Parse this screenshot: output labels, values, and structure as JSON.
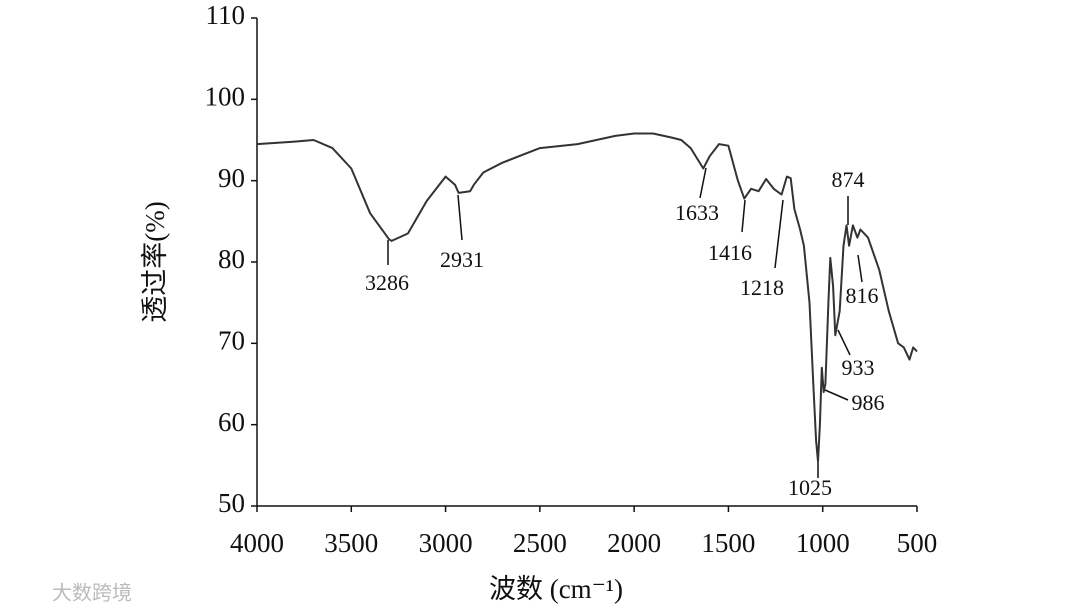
{
  "chart_data": {
    "type": "line",
    "xlabel": "波数 (cm⁻¹)",
    "ylabel": "透过率(%)",
    "x": [
      4000,
      3800,
      3700,
      3600,
      3500,
      3400,
      3300,
      3286,
      3200,
      3100,
      3000,
      2950,
      2931,
      2870,
      2850,
      2800,
      2700,
      2500,
      2300,
      2200,
      2100,
      2000,
      1900,
      1800,
      1750,
      1700,
      1633,
      1600,
      1550,
      1500,
      1450,
      1416,
      1380,
      1340,
      1300,
      1260,
      1230,
      1218,
      1190,
      1170,
      1150,
      1120,
      1100,
      1070,
      1050,
      1035,
      1025,
      1015,
      1005,
      995,
      986,
      970,
      960,
      945,
      933,
      910,
      890,
      874,
      860,
      840,
      816,
      800,
      760,
      700,
      650,
      600,
      570,
      540,
      520,
      500
    ],
    "values": [
      94.5,
      94.8,
      95.0,
      94.0,
      91.5,
      86.0,
      82.8,
      82.6,
      83.5,
      87.5,
      90.5,
      89.5,
      88.5,
      88.7,
      89.5,
      91.0,
      92.2,
      94.0,
      94.5,
      95.0,
      95.5,
      95.8,
      95.8,
      95.3,
      95.0,
      94.0,
      91.5,
      93.0,
      94.5,
      94.3,
      90.0,
      87.8,
      89.0,
      88.7,
      90.2,
      89.0,
      88.5,
      88.3,
      90.5,
      90.3,
      86.5,
      84.0,
      82.0,
      75.0,
      65.0,
      58.0,
      55.5,
      60.0,
      67.0,
      64.0,
      65.0,
      75.0,
      80.5,
      77.0,
      71.0,
      74.0,
      82.0,
      84.5,
      82.0,
      84.5,
      83.0,
      84.0,
      83.0,
      79.0,
      74.0,
      70.0,
      69.5,
      68.0,
      69.5,
      69.0
    ],
    "color": "#333333",
    "xlim": [
      4000,
      500
    ],
    "xticks": [
      4000,
      3500,
      3000,
      2500,
      2000,
      1500,
      1000,
      500
    ],
    "ylim": [
      50,
      110
    ],
    "yticks": [
      50,
      60,
      70,
      80,
      90,
      100,
      110
    ],
    "annotations": [
      "3286",
      "2931",
      "1633",
      "1416",
      "1218",
      "1025",
      "986",
      "933",
      "874",
      "816"
    ],
    "watermark": "大数跨境"
  }
}
